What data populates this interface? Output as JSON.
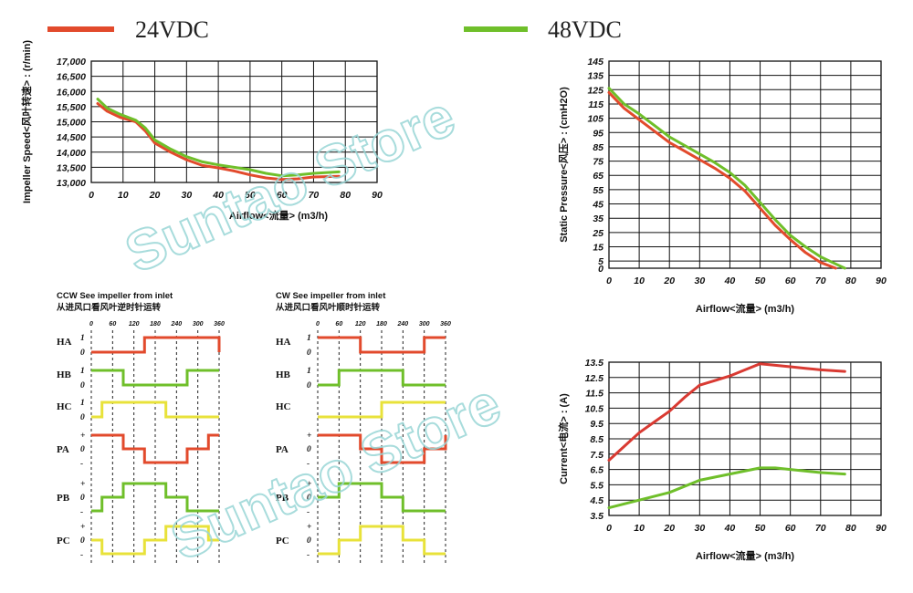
{
  "legend": [
    {
      "label": "24VDC",
      "color": "#e24a2c"
    },
    {
      "label": "48VDC",
      "color": "#6fbf2a"
    }
  ],
  "watermark": "Suntao Store",
  "chart_data": [
    {
      "type": "line",
      "id": "speed",
      "xlabel": "Airflow<流量> (m3/h)",
      "ylabel": "Impeller Speed<风叶转速> : (r/min)",
      "xlim": [
        0,
        90
      ],
      "ylim": [
        13000,
        17000
      ],
      "xticks": [
        0,
        10,
        20,
        30,
        40,
        50,
        60,
        70,
        80,
        90
      ],
      "yticks": [
        13000,
        13500,
        14000,
        14500,
        15000,
        15500,
        16000,
        16500,
        17000
      ],
      "ytick_labels": [
        "13,000",
        "13,500",
        "14,000",
        "14,500",
        "15,000",
        "15,500",
        "16,000",
        "16,500",
        "17,000"
      ],
      "series": [
        {
          "name": "24VDC",
          "color": "#e24a2c",
          "x": [
            2,
            5,
            9,
            14,
            17,
            20,
            25,
            30,
            35,
            40,
            45,
            50,
            55,
            60,
            65,
            70,
            78
          ],
          "y": [
            15600,
            15350,
            15150,
            15000,
            14700,
            14300,
            14000,
            13750,
            13560,
            13480,
            13380,
            13250,
            13150,
            13100,
            13120,
            13180,
            13200
          ]
        },
        {
          "name": "48VDC",
          "color": "#6fbf2a",
          "x": [
            2,
            5,
            9,
            14,
            17,
            20,
            25,
            30,
            35,
            40,
            45,
            50,
            55,
            60,
            65,
            70,
            78
          ],
          "y": [
            15750,
            15450,
            15250,
            15050,
            14800,
            14400,
            14100,
            13850,
            13680,
            13580,
            13500,
            13420,
            13300,
            13220,
            13250,
            13300,
            13350
          ]
        }
      ]
    },
    {
      "type": "line",
      "id": "pressure",
      "xlabel": "Airflow<流量> (m3/h)",
      "ylabel": "Static Pressure<风压> : (cmH2O)",
      "xlim": [
        0,
        90
      ],
      "ylim": [
        0,
        145
      ],
      "xticks": [
        0,
        10,
        20,
        30,
        40,
        50,
        60,
        70,
        80,
        90
      ],
      "yticks": [
        0,
        5,
        15,
        25,
        35,
        45,
        55,
        65,
        75,
        85,
        95,
        105,
        115,
        125,
        135,
        145
      ],
      "series": [
        {
          "name": "24VDC",
          "color": "#e24a2c",
          "x": [
            0,
            5,
            10,
            15,
            20,
            25,
            30,
            35,
            40,
            45,
            50,
            55,
            60,
            65,
            70,
            75
          ],
          "y": [
            123,
            112,
            104,
            96,
            88,
            82,
            76,
            70,
            63,
            54,
            42,
            30,
            20,
            11,
            4,
            0
          ]
        },
        {
          "name": "48VDC",
          "color": "#6fbf2a",
          "x": [
            0,
            5,
            10,
            15,
            20,
            25,
            30,
            35,
            40,
            45,
            50,
            55,
            60,
            65,
            70,
            75,
            78
          ],
          "y": [
            126,
            115,
            108,
            100,
            92,
            86,
            80,
            74,
            67,
            58,
            46,
            34,
            23,
            15,
            8,
            3,
            0
          ]
        }
      ]
    },
    {
      "type": "line",
      "id": "current",
      "xlabel": "Airflow<流量> (m3/h)",
      "ylabel": "Current<电流> : (A)",
      "xlim": [
        0,
        90
      ],
      "ylim": [
        3.5,
        13.5
      ],
      "xticks": [
        0,
        10,
        20,
        30,
        40,
        50,
        60,
        70,
        80,
        90
      ],
      "yticks": [
        3.5,
        4.5,
        5.5,
        6.5,
        7.5,
        8.5,
        9.5,
        10.5,
        11.5,
        12.5,
        13.5
      ],
      "series": [
        {
          "name": "24VDC",
          "color": "#d93a32",
          "x": [
            0,
            5,
            10,
            15,
            20,
            25,
            30,
            35,
            40,
            45,
            50,
            55,
            60,
            65,
            70,
            78
          ],
          "y": [
            7.1,
            8.0,
            8.9,
            9.6,
            10.3,
            11.2,
            12.0,
            12.3,
            12.6,
            13.0,
            13.4,
            13.3,
            13.2,
            13.1,
            13.0,
            12.9
          ]
        },
        {
          "name": "48VDC",
          "color": "#6fbf2a",
          "x": [
            0,
            10,
            20,
            30,
            40,
            50,
            55,
            60,
            70,
            78
          ],
          "y": [
            4.0,
            4.5,
            5.0,
            5.8,
            6.2,
            6.6,
            6.6,
            6.5,
            6.3,
            6.2
          ]
        }
      ]
    },
    {
      "type": "line",
      "id": "timing-ccw",
      "caption_en": "CCW See impeller from inlet",
      "caption_cn": "从进风口看风叶逆时针运转",
      "xticks": [
        0,
        60,
        120,
        180,
        240,
        300,
        360
      ],
      "series": [
        {
          "name": "HA",
          "color": "#e24a2c",
          "levels": [
            "1",
            "0"
          ],
          "points": [
            [
              0,
              0
            ],
            [
              150,
              0
            ],
            [
              150,
              1
            ],
            [
              360,
              1
            ],
            [
              360,
              0
            ]
          ]
        },
        {
          "name": "HB",
          "color": "#6fbf2a",
          "levels": [
            "1",
            "0"
          ],
          "points": [
            [
              0,
              1
            ],
            [
              90,
              1
            ],
            [
              90,
              0
            ],
            [
              270,
              0
            ],
            [
              270,
              1
            ],
            [
              360,
              1
            ]
          ]
        },
        {
          "name": "HC",
          "color": "#e8e23a",
          "levels": [
            "1",
            "0"
          ],
          "points": [
            [
              0,
              0
            ],
            [
              30,
              0
            ],
            [
              30,
              1
            ],
            [
              210,
              1
            ],
            [
              210,
              0
            ],
            [
              360,
              0
            ]
          ]
        },
        {
          "name": "PA",
          "color": "#e24a2c",
          "levels": [
            "+",
            "0",
            "-"
          ],
          "points": [
            [
              0,
              1
            ],
            [
              90,
              1
            ],
            [
              90,
              0
            ],
            [
              150,
              0
            ],
            [
              150,
              -1
            ],
            [
              270,
              -1
            ],
            [
              270,
              0
            ],
            [
              330,
              0
            ],
            [
              330,
              1
            ],
            [
              360,
              1
            ]
          ]
        },
        {
          "name": "PB",
          "color": "#6fbf2a",
          "levels": [
            "+",
            "0",
            "-"
          ],
          "points": [
            [
              0,
              -1
            ],
            [
              30,
              -1
            ],
            [
              30,
              0
            ],
            [
              90,
              0
            ],
            [
              90,
              1
            ],
            [
              210,
              1
            ],
            [
              210,
              0
            ],
            [
              270,
              0
            ],
            [
              270,
              -1
            ],
            [
              360,
              -1
            ]
          ]
        },
        {
          "name": "PC",
          "color": "#e8e23a",
          "levels": [
            "+",
            "0",
            "-"
          ],
          "points": [
            [
              0,
              0
            ],
            [
              30,
              0
            ],
            [
              30,
              -1
            ],
            [
              150,
              -1
            ],
            [
              150,
              0
            ],
            [
              210,
              0
            ],
            [
              210,
              1
            ],
            [
              330,
              1
            ],
            [
              330,
              0
            ],
            [
              360,
              0
            ]
          ]
        }
      ]
    },
    {
      "type": "line",
      "id": "timing-cw",
      "caption_en": "CW See impeller from inlet",
      "caption_cn": "从进风口看风叶顺时针运转",
      "xticks": [
        0,
        60,
        120,
        180,
        240,
        300,
        360
      ],
      "series": [
        {
          "name": "HA",
          "color": "#e24a2c",
          "levels": [
            "1",
            "0"
          ],
          "points": [
            [
              0,
              1
            ],
            [
              120,
              1
            ],
            [
              120,
              0
            ],
            [
              300,
              0
            ],
            [
              300,
              1
            ],
            [
              360,
              1
            ]
          ]
        },
        {
          "name": "HB",
          "color": "#6fbf2a",
          "levels": [
            "1",
            "0"
          ],
          "points": [
            [
              0,
              0
            ],
            [
              60,
              0
            ],
            [
              60,
              1
            ],
            [
              240,
              1
            ],
            [
              240,
              0
            ],
            [
              360,
              0
            ]
          ]
        },
        {
          "name": "HC",
          "color": "#e8e23a",
          "levels": [
            "",
            ""
          ],
          "points": [
            [
              0,
              0
            ],
            [
              180,
              0
            ],
            [
              180,
              1
            ],
            [
              360,
              1
            ]
          ]
        },
        {
          "name": "PA",
          "color": "#e24a2c",
          "levels": [
            "+",
            "0",
            "-"
          ],
          "points": [
            [
              0,
              1
            ],
            [
              120,
              1
            ],
            [
              120,
              0
            ],
            [
              180,
              0
            ],
            [
              180,
              -1
            ],
            [
              300,
              -1
            ],
            [
              300,
              0
            ],
            [
              360,
              0
            ],
            [
              360,
              1
            ]
          ]
        },
        {
          "name": "PB",
          "color": "#6fbf2a",
          "levels": [
            "+",
            "0",
            "-"
          ],
          "points": [
            [
              0,
              0
            ],
            [
              60,
              0
            ],
            [
              60,
              1
            ],
            [
              180,
              1
            ],
            [
              180,
              0
            ],
            [
              240,
              0
            ],
            [
              240,
              -1
            ],
            [
              360,
              -1
            ]
          ]
        },
        {
          "name": "PC",
          "color": "#e8e23a",
          "levels": [
            "+",
            "0",
            "-"
          ],
          "points": [
            [
              0,
              -1
            ],
            [
              60,
              -1
            ],
            [
              60,
              0
            ],
            [
              120,
              0
            ],
            [
              120,
              1
            ],
            [
              240,
              1
            ],
            [
              240,
              0
            ],
            [
              300,
              0
            ],
            [
              300,
              -1
            ],
            [
              360,
              -1
            ]
          ]
        }
      ]
    }
  ]
}
